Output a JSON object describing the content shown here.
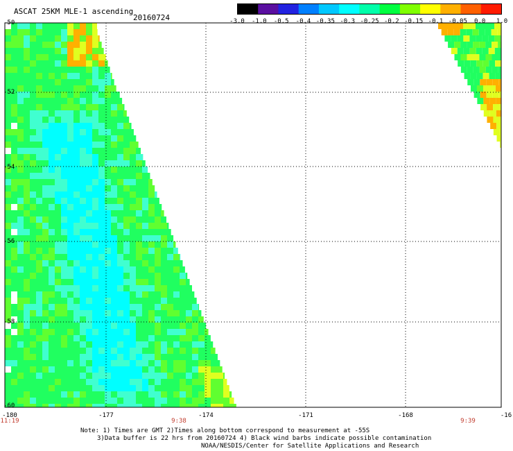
{
  "header": {
    "title": "ASCAT 25KM MLE-1 ascending",
    "date": "20160724"
  },
  "colorbar": {
    "ticks": [
      "-3.0",
      "-1.0",
      "-0.5",
      "-0.4",
      "-0.35",
      "-0.3",
      "-0.25",
      "-0.2",
      "-0.15",
      "-0.1",
      "-0.05",
      "0.0",
      "1.0"
    ],
    "colors": [
      "#000000",
      "#5a0fa0",
      "#2222e0",
      "#0080ff",
      "#00c8ff",
      "#00ffff",
      "#00ffaa",
      "#00ff40",
      "#80ff00",
      "#ffff00",
      "#ffb000",
      "#ff6000",
      "#ff1a00"
    ]
  },
  "map": {
    "lat_labels": [
      "-50",
      "-52",
      "-54",
      "-56",
      "-58",
      "-60"
    ],
    "lon_labels": [
      "-180",
      "-177",
      "-174",
      "-171",
      "-168",
      "-16"
    ],
    "time_labels": [
      "11:19",
      "9:38",
      "9:39"
    ],
    "swath_colors": {
      "cyan": "#00ffff",
      "aqua": "#40ffd0",
      "green": "#20ff60",
      "lime": "#60ff30",
      "yellow": "#e0ff20",
      "orange": "#ffb000",
      "red": "#ff6000",
      "white": "#ffffff"
    }
  },
  "notes": [
    "Note: 1) Times are GMT 2)Times along bottom correspond to measurement at -55S",
    "3)Data buffer is 22 hrs from 20160724 4) Black wind barbs indicate possible contamination",
    "NOAA/NESDIS/Center for Satellite Applications and Research"
  ]
}
